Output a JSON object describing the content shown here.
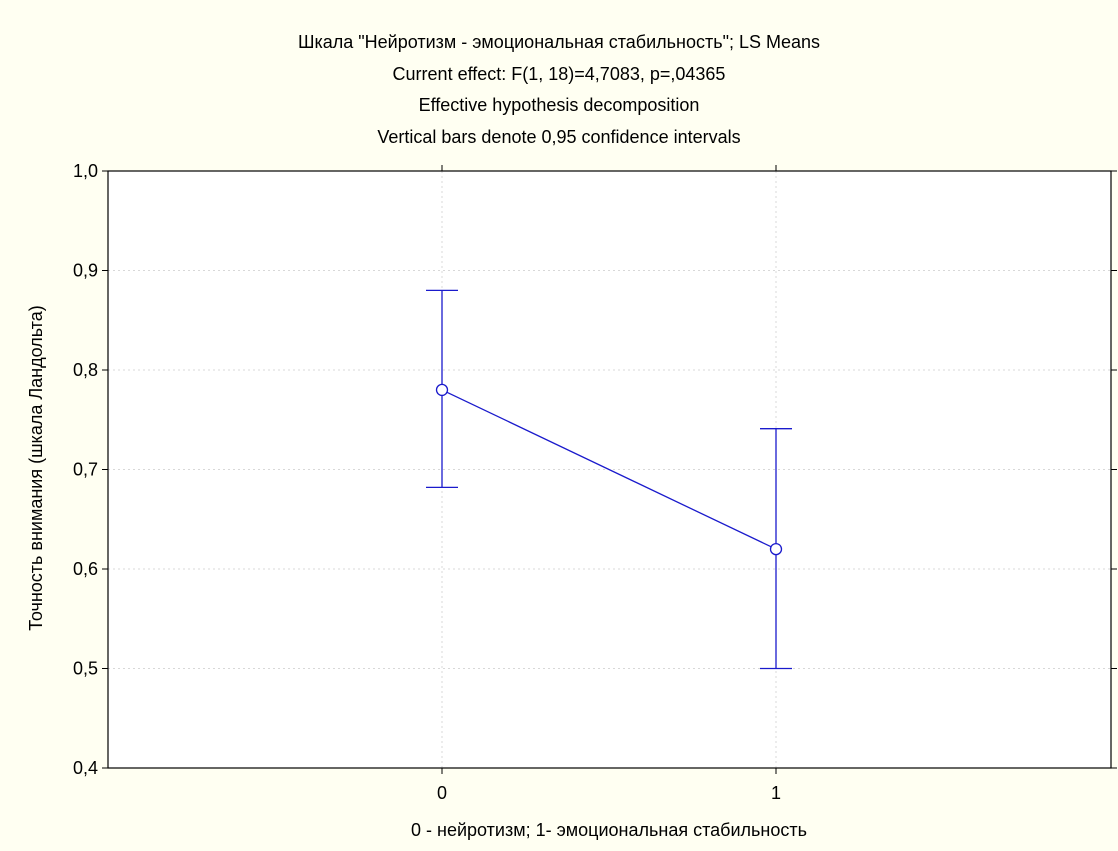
{
  "chart_data": {
    "type": "line",
    "title_lines": [
      "Шкала \"Нейротизм - эмоциональная стабильность\"; LS Means",
      "Current effect: F(1, 18)=4,7083, p=,04365",
      "Effective hypothesis decomposition",
      "Vertical bars denote 0,95 confidence intervals"
    ],
    "xlabel": "0 - нейротизм; 1- эмоциональная стабильность",
    "ylabel": "Точность внимания (шкала Ландольта)",
    "categories": [
      "0",
      "1"
    ],
    "series": [
      {
        "values": [
          0.78,
          0.62
        ],
        "ci_lower": [
          0.682,
          0.5
        ],
        "ci_upper": [
          0.88,
          0.741
        ]
      }
    ],
    "ylim": [
      0.4,
      1.0
    ],
    "y_ticks": [
      "0,4",
      "0,5",
      "0,6",
      "0,7",
      "0,8",
      "0,9",
      "1,0"
    ],
    "y_tick_values": [
      0.4,
      0.5,
      0.6,
      0.7,
      0.8,
      0.9,
      1.0
    ],
    "grid": true,
    "colors": {
      "series": "#1a1acc",
      "background": "#fffff2",
      "plot_background": "#ffffff",
      "grid": "#d8d8d8"
    }
  }
}
